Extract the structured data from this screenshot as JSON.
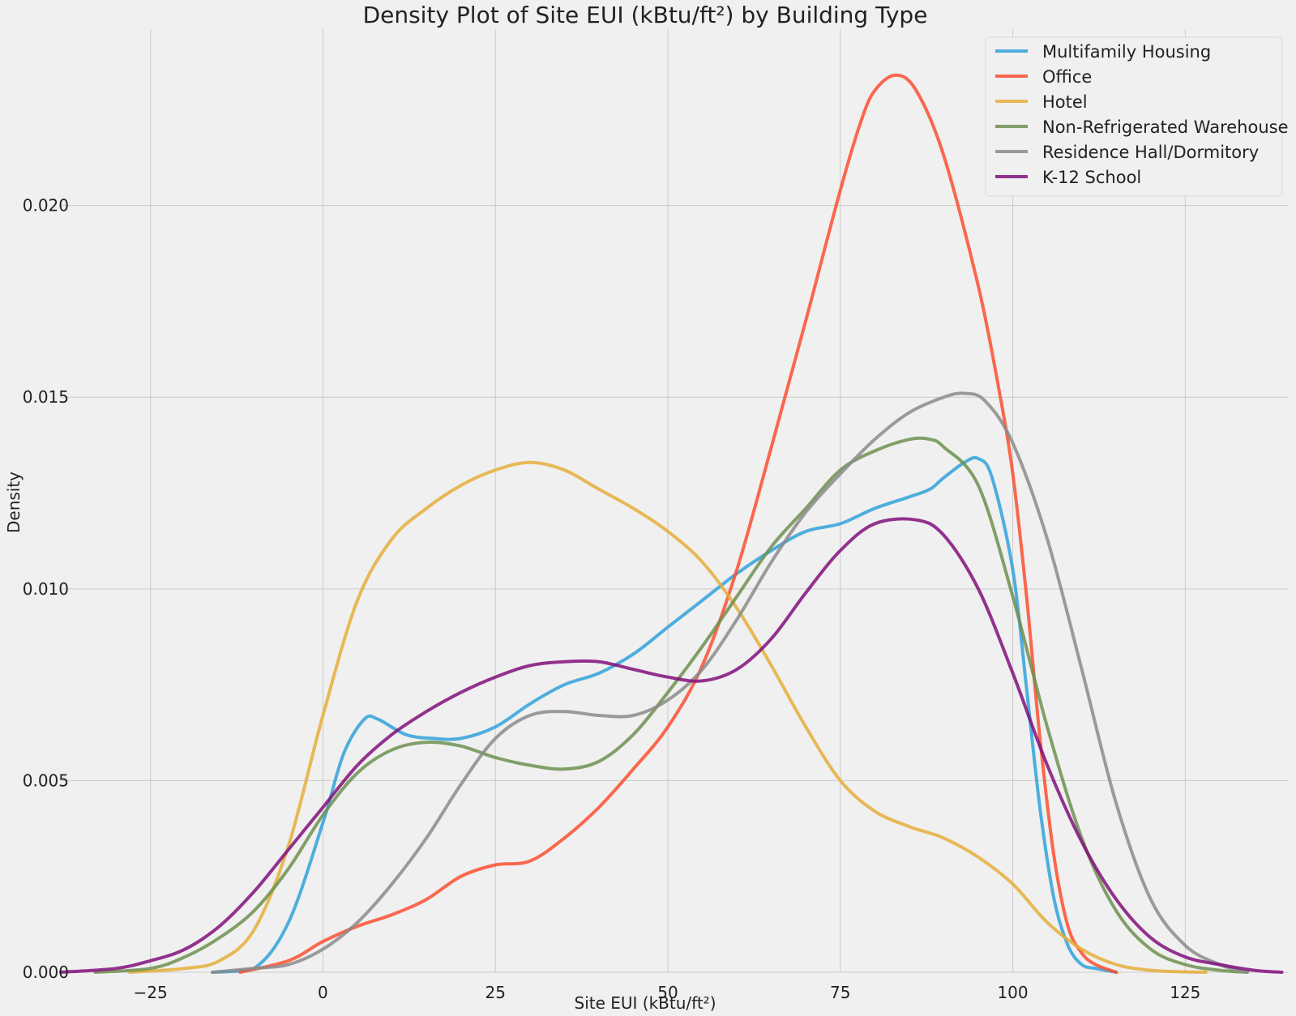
{
  "chart_data": {
    "type": "line",
    "title": "Density Plot of Site EUI (kBtu/ft²) by Building Type",
    "xlabel": "Site EUI (kBtu/ft²)",
    "ylabel": "Density",
    "xlim": [
      -38,
      140
    ],
    "ylim": [
      0,
      0.0246
    ],
    "xticks": [
      -25,
      0,
      25,
      50,
      75,
      100,
      125
    ],
    "xtick_labels": [
      "−25",
      "0",
      "25",
      "50",
      "75",
      "100",
      "125"
    ],
    "yticks": [
      0,
      0.005,
      0.01,
      0.015,
      0.02
    ],
    "ytick_labels": [
      "0.000",
      "0.005",
      "0.010",
      "0.015",
      "0.020"
    ],
    "grid": true,
    "legend_position": "top-right",
    "series": [
      {
        "name": "Multifamily Housing",
        "color": "#30a2da",
        "x": [
          -16,
          -10,
          -5,
          0,
          3,
          6,
          8,
          12,
          16,
          20,
          25,
          30,
          35,
          40,
          45,
          50,
          55,
          60,
          65,
          70,
          75,
          80,
          85,
          88,
          90,
          93,
          95,
          97,
          100,
          102,
          104,
          106,
          108,
          110,
          112,
          115
        ],
        "y": [
          0,
          0.0001,
          0.0013,
          0.0039,
          0.0057,
          0.0066,
          0.0066,
          0.0062,
          0.0061,
          0.0061,
          0.0064,
          0.007,
          0.0075,
          0.0078,
          0.0083,
          0.009,
          0.0097,
          0.0104,
          0.011,
          0.0115,
          0.0117,
          0.0121,
          0.0124,
          0.0126,
          0.0129,
          0.0133,
          0.0134,
          0.0129,
          0.0105,
          0.0074,
          0.0042,
          0.0019,
          0.0007,
          0.0002,
          0.0001,
          0
        ]
      },
      {
        "name": "Office",
        "color": "#fc4f30",
        "x": [
          -12,
          -5,
          0,
          5,
          10,
          15,
          20,
          25,
          30,
          35,
          40,
          45,
          50,
          55,
          60,
          65,
          70,
          75,
          78,
          80,
          83,
          86,
          90,
          95,
          98,
          100,
          102,
          104,
          106,
          108,
          110,
          112,
          115
        ],
        "y": [
          0,
          0.0003,
          0.0008,
          0.0012,
          0.0015,
          0.0019,
          0.0025,
          0.0028,
          0.0029,
          0.0035,
          0.0043,
          0.0053,
          0.0064,
          0.008,
          0.0105,
          0.0137,
          0.017,
          0.0204,
          0.0222,
          0.023,
          0.0234,
          0.023,
          0.0213,
          0.0179,
          0.0152,
          0.013,
          0.0098,
          0.006,
          0.003,
          0.0012,
          0.0005,
          0.0002,
          0
        ]
      },
      {
        "name": "Hotel",
        "color": "#e5ae38",
        "x": [
          -28,
          -20,
          -15,
          -10,
          -5,
          0,
          5,
          10,
          15,
          20,
          25,
          30,
          35,
          40,
          45,
          50,
          55,
          60,
          65,
          70,
          75,
          80,
          85,
          90,
          95,
          100,
          105,
          110,
          115,
          120,
          125,
          128
        ],
        "y": [
          0,
          0.0001,
          0.0003,
          0.0011,
          0.0033,
          0.0067,
          0.0097,
          0.0113,
          0.0121,
          0.0127,
          0.0131,
          0.0133,
          0.0131,
          0.0126,
          0.0121,
          0.0115,
          0.0107,
          0.0095,
          0.008,
          0.0064,
          0.005,
          0.0042,
          0.0038,
          0.0035,
          0.003,
          0.0023,
          0.0013,
          0.0006,
          0.0002,
          5e-05,
          1e-05,
          0
        ]
      },
      {
        "name": "Non-Refrigerated Warehouse",
        "color": "#6d904f",
        "x": [
          -33,
          -25,
          -20,
          -15,
          -10,
          -5,
          0,
          5,
          10,
          15,
          20,
          25,
          30,
          35,
          40,
          45,
          50,
          55,
          60,
          65,
          70,
          75,
          80,
          85,
          88,
          90,
          95,
          100,
          105,
          110,
          115,
          120,
          125,
          130,
          134
        ],
        "y": [
          0,
          0.0001,
          0.0004,
          0.0009,
          0.0016,
          0.0027,
          0.0041,
          0.0052,
          0.0058,
          0.006,
          0.0059,
          0.0056,
          0.0054,
          0.0053,
          0.0055,
          0.0062,
          0.0073,
          0.0085,
          0.0098,
          0.0111,
          0.0121,
          0.0131,
          0.0136,
          0.0139,
          0.0139,
          0.0137,
          0.0127,
          0.0098,
          0.0064,
          0.0035,
          0.0016,
          0.0006,
          0.0002,
          5e-05,
          0
        ]
      },
      {
        "name": "Residence Hall/Dormitory",
        "color": "#8b8b8b",
        "x": [
          -16,
          -10,
          -5,
          0,
          5,
          10,
          15,
          20,
          25,
          30,
          35,
          40,
          45,
          50,
          55,
          60,
          65,
          70,
          75,
          80,
          85,
          90,
          93,
          96,
          100,
          105,
          110,
          115,
          120,
          125,
          130,
          134
        ],
        "y": [
          0,
          0.0001,
          0.0002,
          0.0006,
          0.0013,
          0.0023,
          0.0035,
          0.0049,
          0.0061,
          0.0067,
          0.0068,
          0.0067,
          0.0067,
          0.0071,
          0.0079,
          0.0092,
          0.0107,
          0.012,
          0.013,
          0.0139,
          0.0146,
          0.015,
          0.0151,
          0.0149,
          0.0138,
          0.0113,
          0.0079,
          0.0044,
          0.0019,
          0.0007,
          0.0002,
          0
        ]
      },
      {
        "name": "K-12 School",
        "color": "#810f7c",
        "x": [
          -38,
          -30,
          -25,
          -20,
          -15,
          -10,
          -5,
          0,
          5,
          10,
          15,
          20,
          25,
          30,
          35,
          40,
          45,
          50,
          55,
          60,
          65,
          70,
          75,
          80,
          86,
          90,
          95,
          100,
          105,
          110,
          115,
          120,
          125,
          130,
          135,
          139
        ],
        "y": [
          0,
          0.0001,
          0.0003,
          0.0006,
          0.0012,
          0.0021,
          0.0032,
          0.0043,
          0.0054,
          0.0062,
          0.0068,
          0.0073,
          0.0077,
          0.008,
          0.0081,
          0.0081,
          0.0079,
          0.0077,
          0.0076,
          0.0079,
          0.0087,
          0.0099,
          0.011,
          0.0117,
          0.0118,
          0.0114,
          0.01,
          0.0078,
          0.0054,
          0.0034,
          0.0019,
          0.0009,
          0.0004,
          0.0002,
          5e-05,
          0
        ]
      }
    ]
  }
}
